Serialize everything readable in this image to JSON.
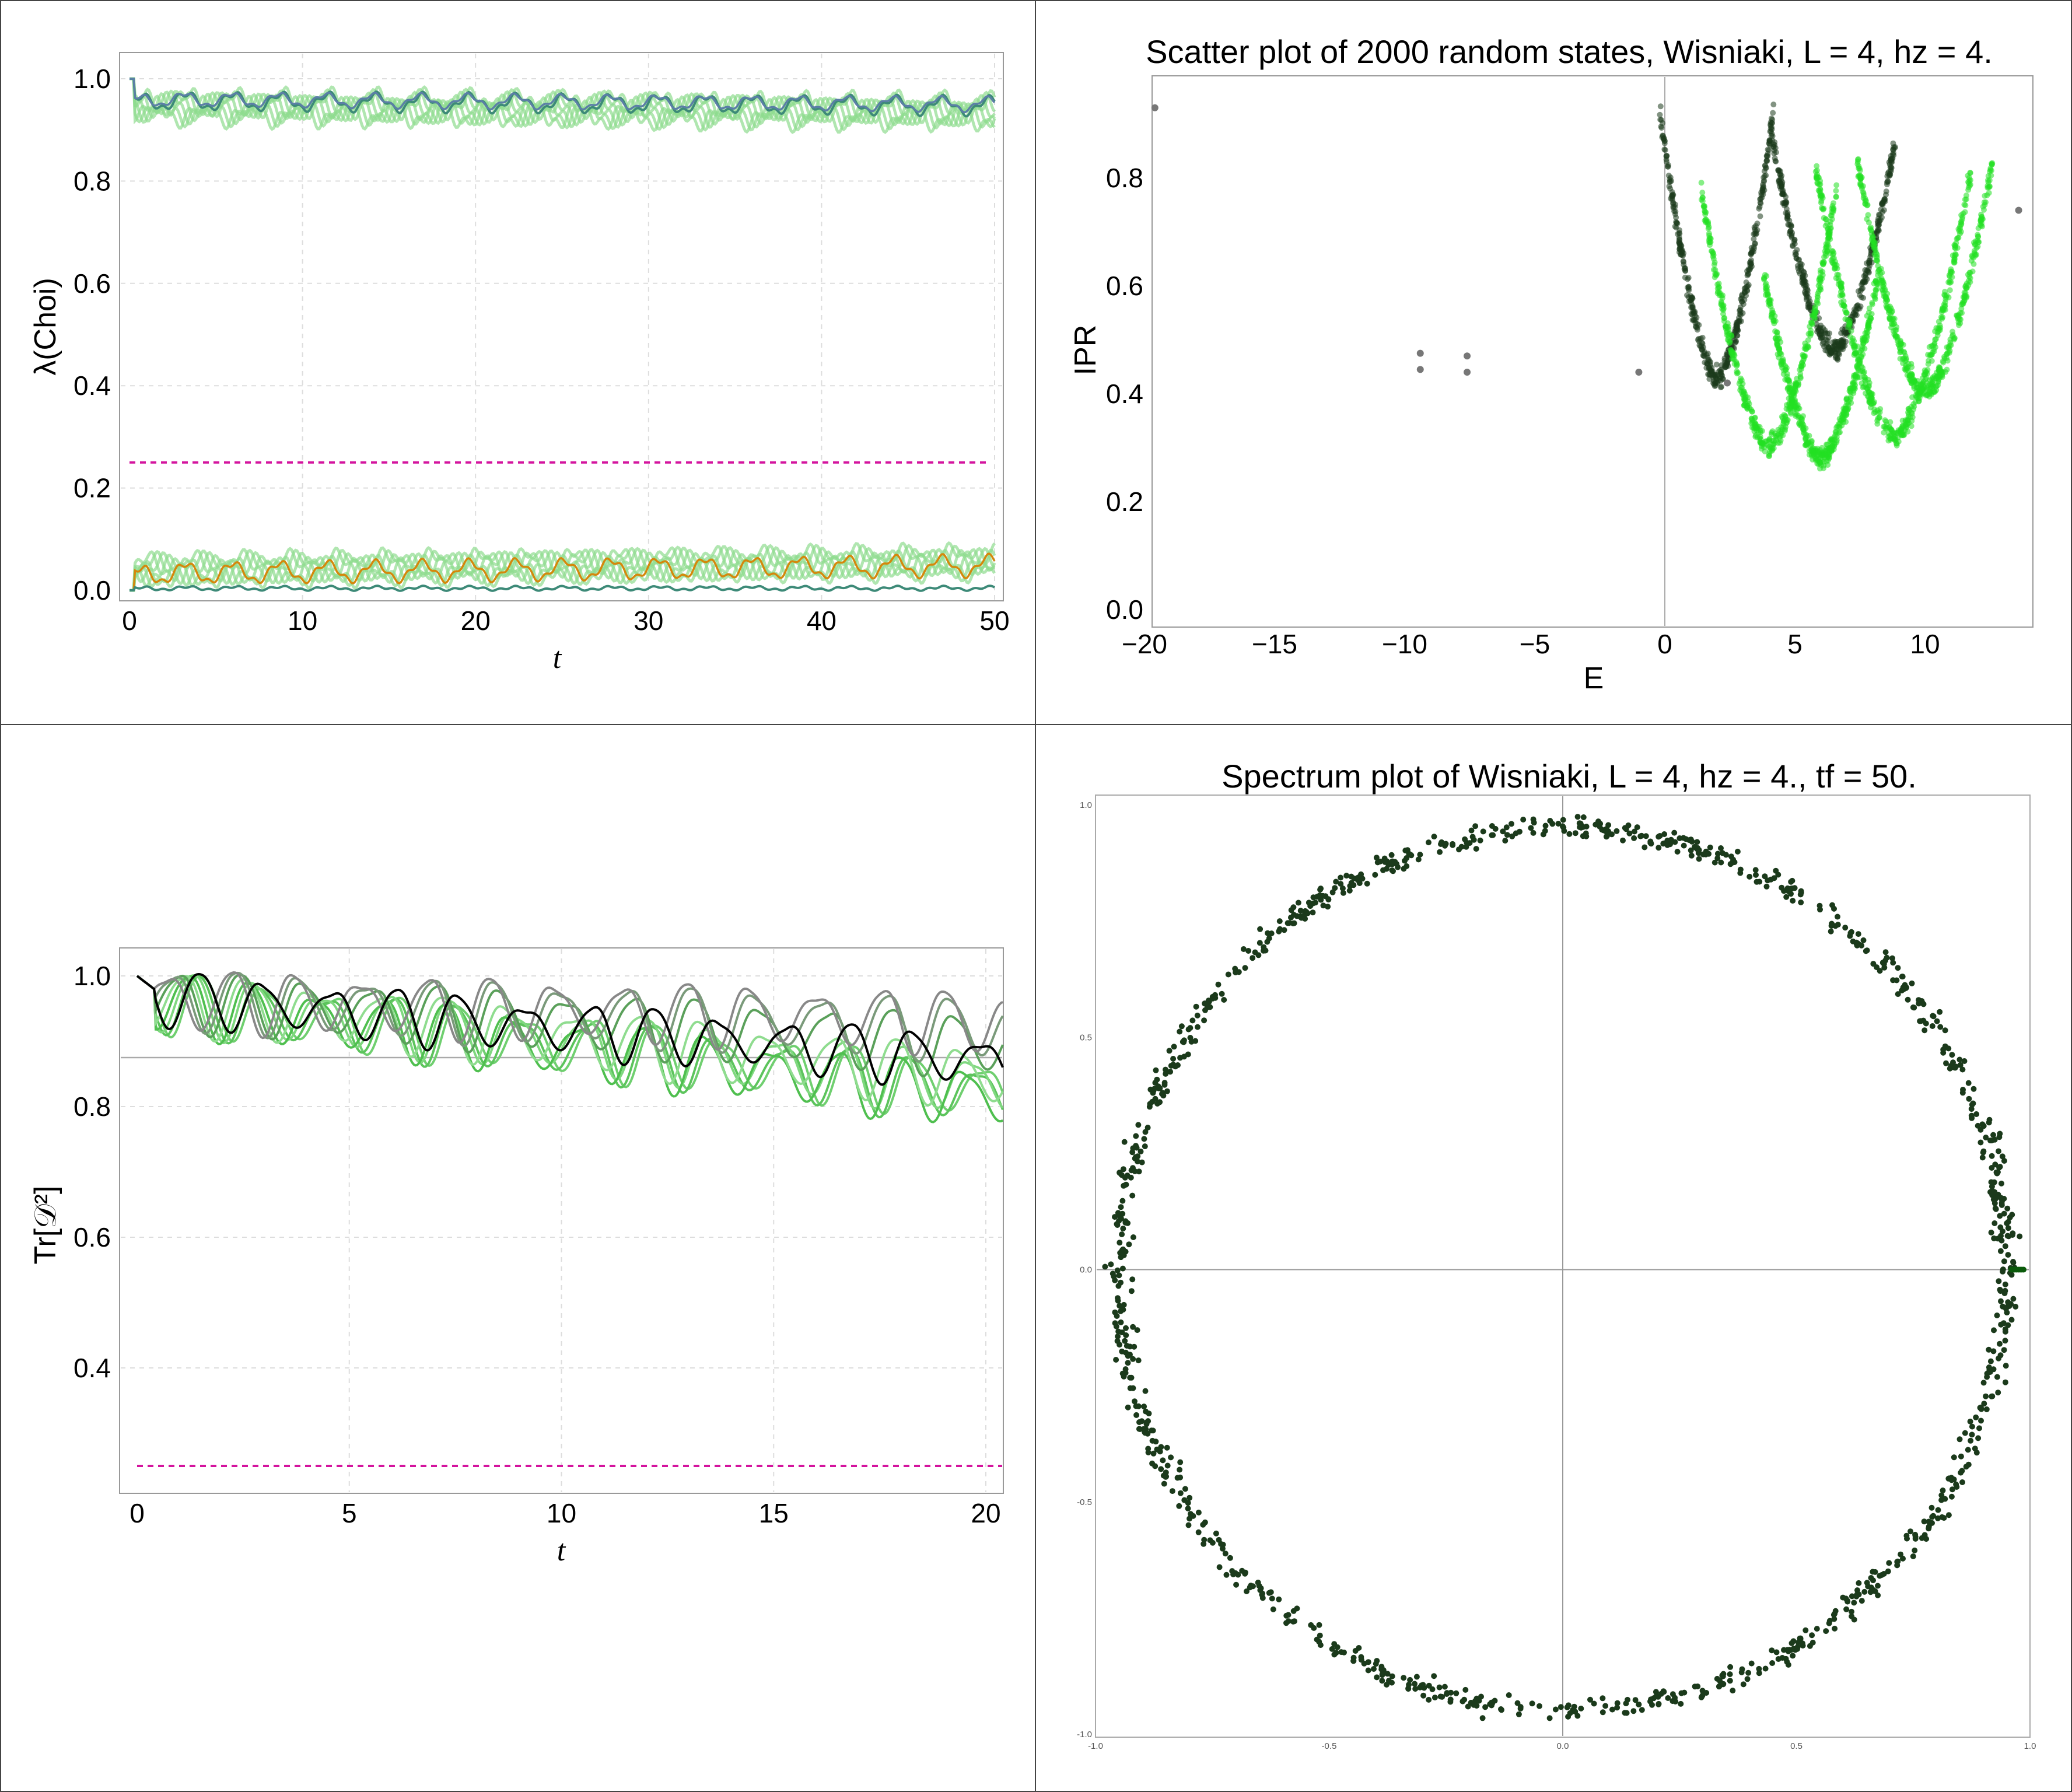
{
  "colors": {
    "frame": "#444444",
    "axis": "#888888",
    "grid": "#dddddd",
    "dashed_ref": "#d4149e",
    "blue_series": "#5b7fa6",
    "teal_series": "#3d8a78",
    "light_green": "#8fdc8f",
    "orange_series": "#d4880c",
    "dark_green_point": "#1b3a1b",
    "bright_green_point": "#22e022",
    "gray_point": "#777777",
    "black_series": "#000000"
  },
  "chart_data": [
    {
      "id": "top-left",
      "type": "line",
      "title": "",
      "xlabel": "t",
      "ylabel": "λ(Choi)",
      "xlim": [
        0,
        50
      ],
      "ylim": [
        0,
        1.03
      ],
      "xticks": [
        "0",
        "10",
        "20",
        "30",
        "40",
        "50"
      ],
      "yticks": [
        "0.0",
        "0.2",
        "0.4",
        "0.6",
        "0.8",
        "1.0"
      ],
      "grid": true,
      "reference_line": {
        "y": 0.25,
        "style": "dashed"
      },
      "series_groups": [
        {
          "group": "upper eigenvalues",
          "approx_mean": 0.96,
          "range": [
            0.92,
            1.0
          ]
        },
        {
          "group": "lower eigenvalues",
          "approx_mean": 0.03,
          "range": [
            0.0,
            0.08
          ]
        }
      ]
    },
    {
      "id": "top-right",
      "type": "scatter",
      "title": "Scatter plot of 2000 random states, Wisniaki, L = 4, hz = 4.",
      "xlabel": "E",
      "ylabel": "IPR",
      "xlim": [
        -20,
        14
      ],
      "ylim": [
        0,
        0.95
      ],
      "xticks": [
        "−20",
        "−15",
        "−10",
        "−5",
        "0",
        "5",
        "10"
      ],
      "yticks": [
        "0.0",
        "0.2",
        "0.4",
        "0.6",
        "0.8"
      ],
      "isolated_points": [
        {
          "x": -19.6,
          "y": 0.93
        },
        {
          "x": -9.4,
          "y": 0.475
        },
        {
          "x": -9.4,
          "y": 0.445
        },
        {
          "x": -7.6,
          "y": 0.47
        },
        {
          "x": -7.6,
          "y": 0.44
        },
        {
          "x": -1.0,
          "y": 0.44
        },
        {
          "x": 2.4,
          "y": 0.42
        },
        {
          "x": 13.6,
          "y": 0.74
        }
      ],
      "cluster": {
        "x_range": [
          0.5,
          12.5
        ],
        "y_range": [
          0.27,
          0.94
        ]
      }
    },
    {
      "id": "bottom-left",
      "type": "line",
      "title": "",
      "xlabel": "t",
      "ylabel": "Tr[𝒟²]",
      "xlim": [
        0,
        20.4
      ],
      "ylim": [
        0.22,
        1.04
      ],
      "xticks": [
        "0",
        "5",
        "10",
        "15",
        "20"
      ],
      "yticks": [
        "0.4",
        "0.6",
        "0.8",
        "1.0"
      ],
      "grid": true,
      "reference_lines": [
        {
          "y": 0.875,
          "style": "solid"
        },
        {
          "y": 0.25,
          "style": "dashed"
        }
      ],
      "series_groups": [
        {
          "group": "black mean",
          "start": 1.0,
          "end": 0.9
        },
        {
          "group": "green curves",
          "end_range": [
            0.85,
            0.97
          ]
        }
      ]
    },
    {
      "id": "bottom-right",
      "type": "scatter",
      "title": "Spectrum plot of Wisniaki, L = 4, hz = 4., tf = 50.",
      "xlabel": "",
      "ylabel": "",
      "xlim": [
        -1.0,
        1.0
      ],
      "ylim": [
        -1.0,
        1.0
      ],
      "xticks": [
        "-1.0",
        "-0.5",
        "0.0",
        "0.5",
        "1.0"
      ],
      "yticks": [
        "-1.0",
        "-0.5",
        "0.0",
        "0.5",
        "1.0"
      ],
      "points_description": "eigenvalues on noisy unit circle",
      "ring_radius": 0.95
    }
  ]
}
